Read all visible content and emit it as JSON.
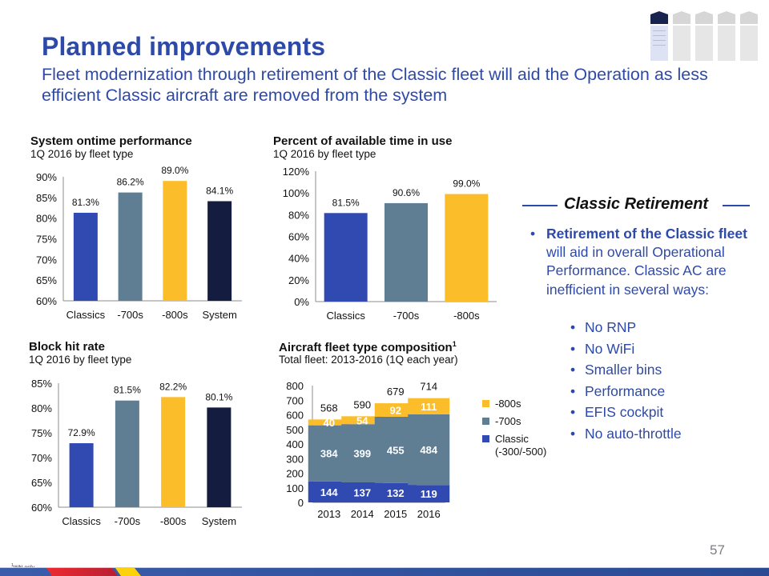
{
  "header": {
    "title": "Planned improvements",
    "subtitle": "Fleet modernization through retirement of the Classic fleet will aid the Operation as less efficient Classic aircraft are removed from the system"
  },
  "colors": {
    "brand_blue": "#2e4aa8",
    "classics": "#304ab2",
    "series_700": "#5f7e94",
    "series_800": "#fbbd2a",
    "system": "#141d40",
    "footer_blue": "#3657a6",
    "footer_red": "#e8262e",
    "footer_yellow": "#fdd20a"
  },
  "chart_data": [
    {
      "id": "ontime",
      "type": "bar",
      "title": "System ontime performance",
      "subtitle": "1Q 2016 by fleet type",
      "categories": [
        "Classics",
        "-700s",
        "-800s",
        "System"
      ],
      "values": [
        81.3,
        86.2,
        89.0,
        84.1
      ],
      "labels": [
        "81.3%",
        "86.2%",
        "89.0%",
        "84.1%"
      ],
      "yticks": [
        "60%",
        "65%",
        "70%",
        "75%",
        "80%",
        "85%",
        "90%"
      ],
      "ylim": [
        60,
        90
      ],
      "grid": false
    },
    {
      "id": "timeinuse",
      "type": "bar",
      "title": "Percent of available time in use",
      "subtitle": "1Q 2016 by fleet type",
      "categories": [
        "Classics",
        "-700s",
        "-800s"
      ],
      "values": [
        81.5,
        90.6,
        99.0
      ],
      "labels": [
        "81.5%",
        "90.6%",
        "99.0%"
      ],
      "yticks": [
        "0%",
        "20%",
        "40%",
        "60%",
        "80%",
        "100%",
        "120%"
      ],
      "ylim": [
        0,
        120
      ],
      "grid": false
    },
    {
      "id": "blockhit",
      "type": "bar",
      "title": "Block hit rate",
      "subtitle": "1Q 2016 by fleet type",
      "categories": [
        "Classics",
        "-700s",
        "-800s",
        "System"
      ],
      "values": [
        72.9,
        81.5,
        82.2,
        80.1
      ],
      "labels": [
        "72.9%",
        "81.5%",
        "82.2%",
        "80.1%"
      ],
      "yticks": [
        "60%",
        "65%",
        "70%",
        "75%",
        "80%",
        "85%"
      ],
      "ylim": [
        60,
        85
      ],
      "grid": false
    },
    {
      "id": "composition",
      "type": "bar",
      "stacked": true,
      "title": "Aircraft fleet type composition",
      "title_superscript": "1",
      "subtitle": "Total fleet: 2013-2016 (1Q each year)",
      "categories": [
        "2013",
        "2014",
        "2015",
        "2016"
      ],
      "series": [
        {
          "name": "Classic (-300/-500)",
          "name_lines": [
            "Classic",
            "(-300/-500)"
          ],
          "values": [
            144,
            137,
            132,
            119
          ]
        },
        {
          "name": "-700s",
          "name_lines": [
            "-700s"
          ],
          "values": [
            384,
            399,
            455,
            484
          ]
        },
        {
          "name": "-800s",
          "name_lines": [
            "-800s"
          ],
          "values": [
            40,
            54,
            92,
            111
          ]
        }
      ],
      "totals": [
        568,
        590,
        679,
        714
      ],
      "yticks": [
        "0",
        "100",
        "200",
        "300",
        "400",
        "500",
        "600",
        "700",
        "800"
      ],
      "ylim": [
        0,
        800
      ],
      "legend": "right",
      "grid": false
    }
  ],
  "retirement": {
    "heading": "Classic Retirement",
    "bullet_bold": "Retirement of the Classic fleet",
    "bullet_rest": " will aid in overall Operational Performance. Classic AC are inefficient in several ways:",
    "sub_items": [
      "No RNP",
      "No WiFi",
      "Smaller bins",
      "Performance",
      "EFIS cockpit",
      "No auto-throttle"
    ]
  },
  "footer": {
    "footnote_mark": "1",
    "footnote": "WN only",
    "page_number": "57"
  }
}
